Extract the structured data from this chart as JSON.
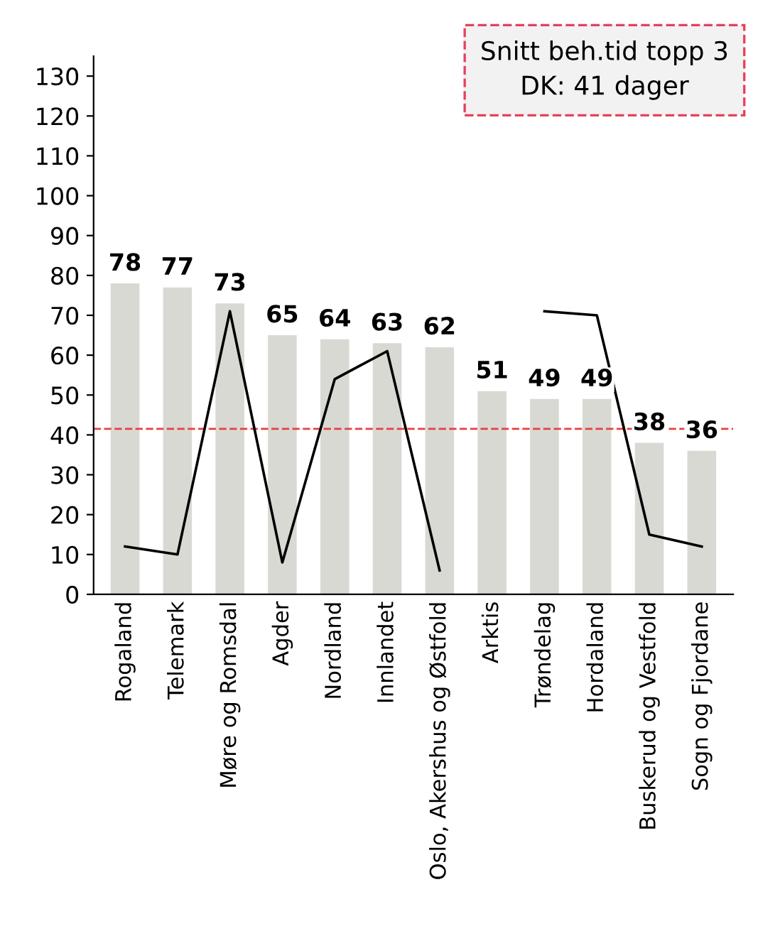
{
  "chart_data": {
    "type": "bar",
    "categories": [
      "Rogaland",
      "Telemark",
      "Møre og Romsdal",
      "Agder",
      "Nordland",
      "Innlandet",
      "Oslo, Akershus og Østfold",
      "Arktis",
      "Trøndelag",
      "Hordaland",
      "Buskerud og Vestfold",
      "Sogn og Fjordane"
    ],
    "series": [
      {
        "color": "#d9d9d4",
        "values": [
          78,
          77,
          73,
          65,
          64,
          63,
          62,
          51,
          49,
          49,
          38,
          36
        ],
        "data_labels": true
      },
      {
        "type": "line",
        "color": "#000000",
        "values": [
          12,
          10,
          71,
          8,
          54,
          61,
          6,
          null,
          71,
          70,
          15,
          12
        ],
        "marker": "none",
        "line_style": "solid"
      }
    ],
    "ylim": [
      0,
      135
    ],
    "yticks": [
      0,
      10,
      20,
      30,
      40,
      50,
      60,
      70,
      80,
      90,
      100,
      110,
      120,
      130
    ],
    "ref_lines": [
      {
        "axis": "y",
        "value": 41.5,
        "color": "#e8403f",
        "line_style": "dashed"
      }
    ],
    "annotations": [
      "Snitt beh.tid topp 3",
      "DK: 41 dager"
    ],
    "grid": false
  }
}
